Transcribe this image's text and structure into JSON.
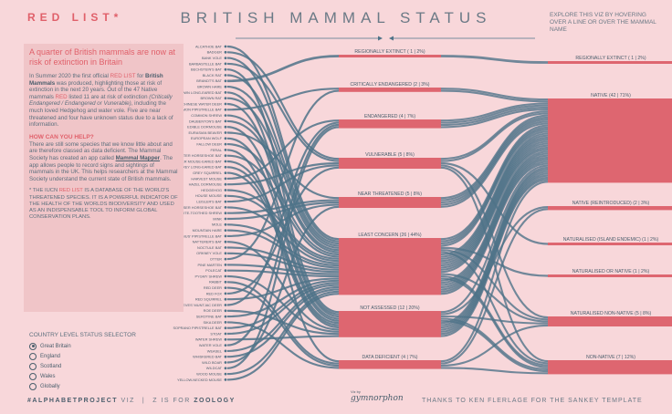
{
  "header": {
    "logo": "RED LIST*",
    "title": "BRITISH MAMMAL STATUS",
    "explore": "EXPLORE THIS VIZ BY HOVERING OVER A LINE OR OVER THE MAMMAL NAME"
  },
  "panel": {
    "headline": "A quarter of British mammals are now at risk of extinction in Britain",
    "p1_a": "In Summer 2020 the first official ",
    "p1_red": "RED LIST",
    "p1_b": " for ",
    "p1_bold": "British Mammals",
    "p1_c": " was produced, highlighting those at risk of extinction in the next 20 years. Out of the 47 Native mammals ",
    "p1_red2": "RED",
    "p1_d": " listed 11 are at risk of extinction ",
    "p1_it": "(Critically Endangered / Endangered or Vunerable)",
    "p1_e": ", including the much loved Hedgehog and water vole. Five are near threatened and four have unknown status due to a lack of information.",
    "help_title": "HOW CAN YOU HELP?",
    "help_a": "There are still some species that we know little about and are therefore classed as data deficient. The Mammal Society has created an app called ",
    "help_link": "Mammal Mapper",
    "help_b": ". The app allows people to record signs and sightings of mammals in the UK. This helps researchers at the Mammal Society understand the current state of British mammals.",
    "iucn_a": "* THE IUCN ",
    "iucn_red": "RED LIST",
    "iucn_b": " IS A DATABASE OF THE WORLD'S THREATENED SPECIES. IT IS A POWERFUL INDICATOR OF THE HEALTH OF THE WORLDS BIODIVERSITY AND USED AS AN INDISPENSABLE TOOL TO INFORM GLOBAL CONSERVATION PLANS."
  },
  "selector": {
    "title": "COUNTRY LEVEL STATUS SELECTOR",
    "options": [
      "Great Britain",
      "England",
      "Scotland",
      "Wales",
      "Globally"
    ],
    "selected": 0
  },
  "footer": {
    "hashtag": "#ALPHABETPROJECT",
    "viz": " VIZ",
    "z_is": "Z IS FOR ",
    "zoology": "ZOOLOGY",
    "sig_small": "Viz by",
    "sig": "gymnorphon",
    "thanks": "THANKS TO KEN FLERLAGE FOR THE SANKEY TEMPLATE"
  },
  "colors": {
    "accent": "#e0606a",
    "flow": "#4f7388",
    "bar": "#de6670"
  },
  "mammals": [
    "ALCATHOE BAT",
    "BADGER",
    "BANK VOLE",
    "BARBASTELLE BAT",
    "BECHSTEIN'S BAT",
    "BLACK RAT",
    "BRANDT'S BAT",
    "BROWN HARE",
    "BROWN LONG-EARED BAT",
    "BROWN RAT",
    "CHINESE WATER DEER",
    "COMMON PIPISTRELLE BAT",
    "COMMON SHREW",
    "DAUBENTON'S BAT",
    "EDIBLE DORMOUSE",
    "EURASIAN BEAVER",
    "EUROPEAN WOLF",
    "FALLOW DEER",
    "FERAL",
    "GREATER HORSESHOE BAT",
    "GREATER MOUSE-EARED BAT",
    "GREY LONG-EARED BAT",
    "GREY SQUIRREL",
    "HARVEST MOUSE",
    "HAZEL DORMOUSE",
    "HEDGEHOG",
    "HOUSE MOUSE",
    "LEISLER'S BAT",
    "LESSER HORSESHOE BAT",
    "LESSER WHITE-TOOTHED SHREW",
    "MINK",
    "MOLE",
    "MOUNTAIN HARE",
    "NATHUSIUS' PIPISTRELLE BAT",
    "NATTERER'S BAT",
    "NOCTULE BAT",
    "ORKNEY VOLE",
    "OTTER",
    "PINE MARTEN",
    "POLECAT",
    "PYGMY SHREW",
    "RABBIT",
    "RED DEER",
    "RED FOX",
    "RED SQUIRREL",
    "REEVES' MUNTJAC DEER",
    "ROE DEER",
    "SEROTINE BAT",
    "SIKA DEER",
    "SOPRANO PIPISTRELLE BAT",
    "STOAT",
    "WATER SHREW",
    "WATER VOLE",
    "WEASEL",
    "WHISKERED BAT",
    "WILD BOAR",
    "WILDCAT",
    "WOOD MOUSE",
    "YELLOW-NECKED MOUSE"
  ],
  "red_list": [
    {
      "label": "REGIONALLY EXTINCT ( 1 | 2%)",
      "count": 1
    },
    {
      "label": "CRITICALLY ENDANGERED (2 | 3%)",
      "count": 2
    },
    {
      "label": "ENDANGERED (4 | 7%)",
      "count": 4
    },
    {
      "label": "VULNERABLE (5 | 8%)",
      "count": 5
    },
    {
      "label": "NEAR THREATENED (5 | 8%)",
      "count": 5
    },
    {
      "label": "LEAST CONCERN (26 | 44%)",
      "count": 26
    },
    {
      "label": "NOT ASSESSED (12 | 20%)",
      "count": 12
    },
    {
      "label": "DATA DEFICIENT (4 | 7%)",
      "count": 4
    }
  ],
  "origin": [
    {
      "label": "REGIONALLY EXTINCT ( 1 | 2%)",
      "count": 1
    },
    {
      "label": "NATIVE (42 | 71%)",
      "count": 42
    },
    {
      "label": "NATIVE (REINTRODUCED) (2 | 3%)",
      "count": 2
    },
    {
      "label": "NATURALISED (ISLAND ENDEMIC) (1 | 2%)",
      "count": 1
    },
    {
      "label": "NATURALISED OR NATIVE (1 | 2%)",
      "count": 1
    },
    {
      "label": "NATURALISED NON-NATIVE (5 | 8%)",
      "count": 5
    },
    {
      "label": "NON-NATIVE (7 | 12%)",
      "count": 7
    }
  ]
}
